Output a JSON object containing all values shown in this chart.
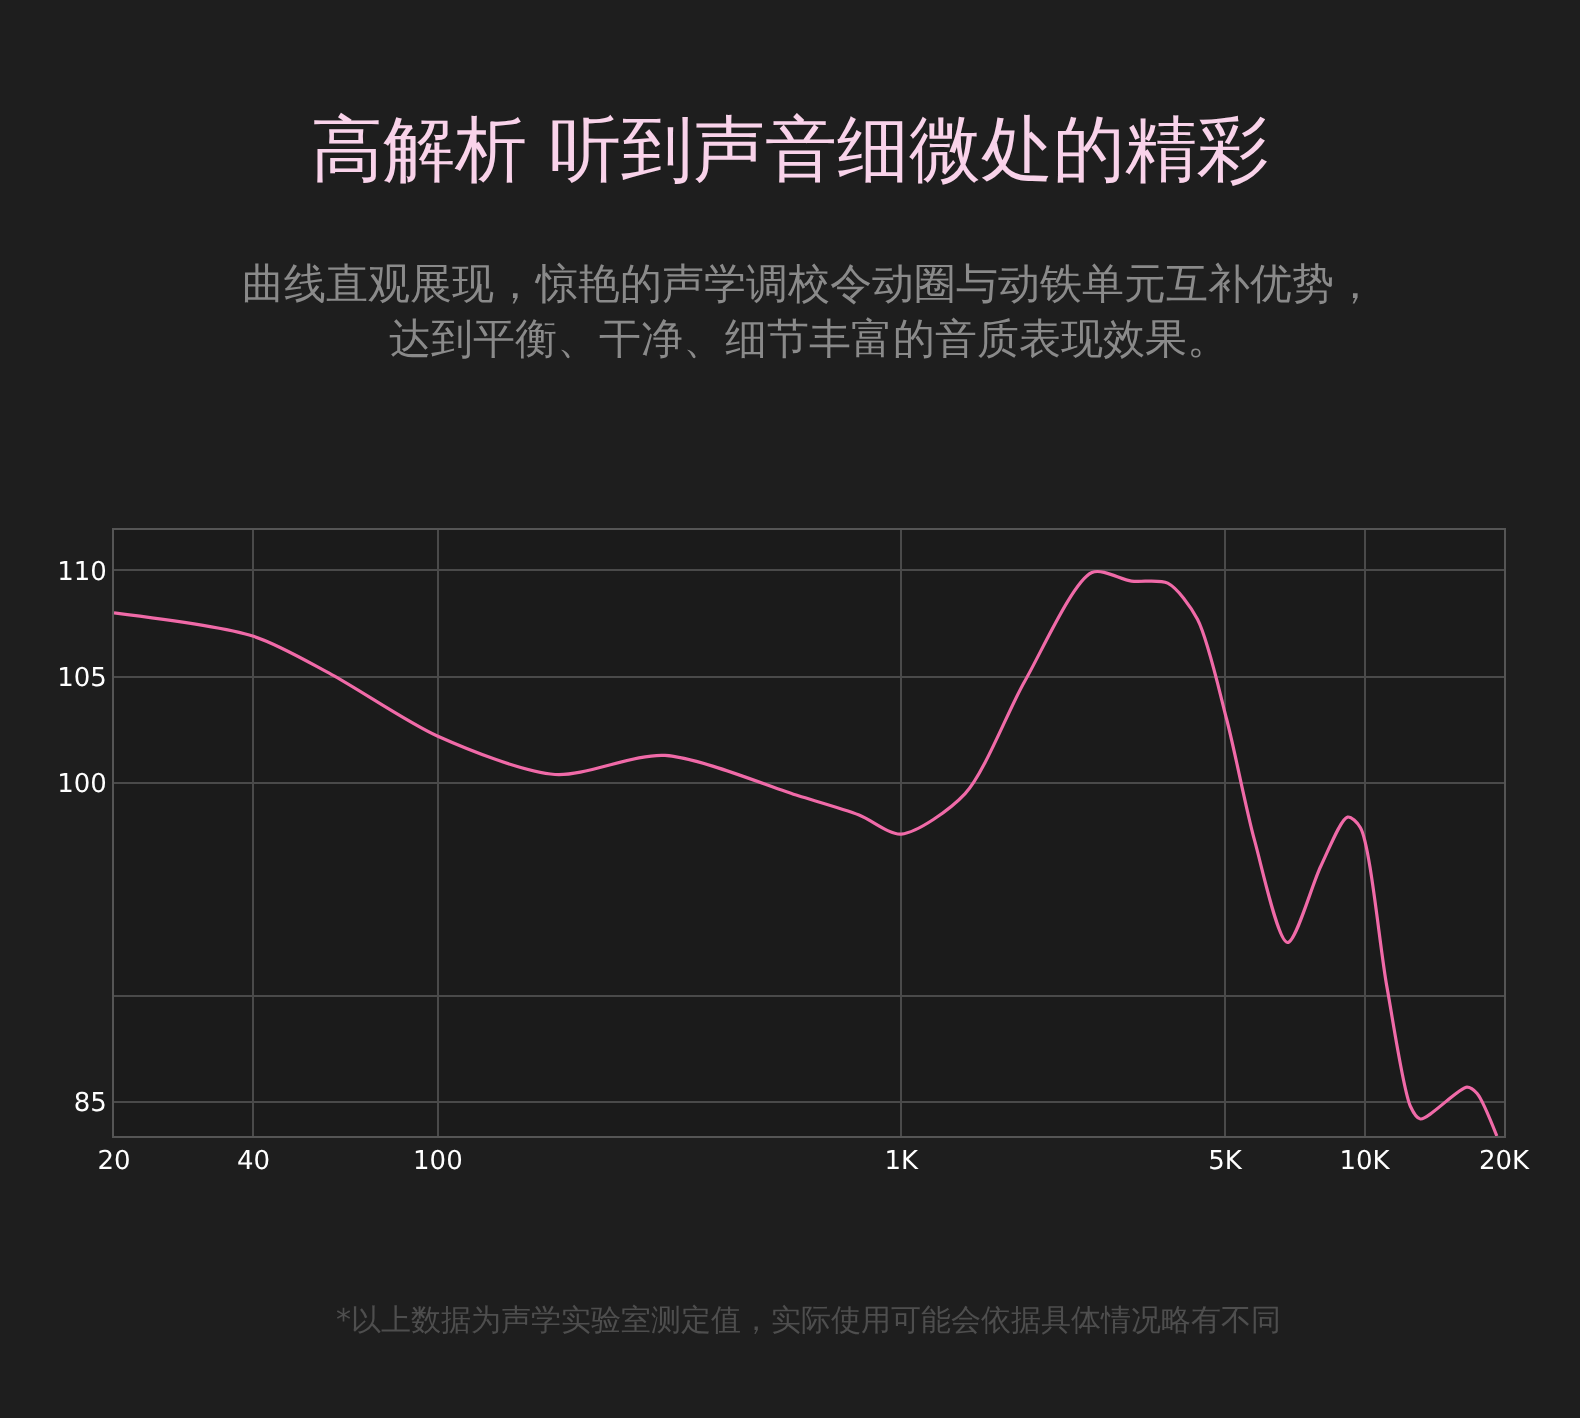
{
  "chart_data": {
    "type": "line",
    "title": "高解析 听到声音细微处的精彩",
    "subtitle": "曲线直观展现，惊艳的声学调校令动圈与动铁单元互补优势，达到平衡、干净、细节丰富的音质表现效果。",
    "annotations": [
      "*以上数据为声学实验室测定值，实际使用可能会依据具体情况略有不同"
    ],
    "log": "x",
    "x": [
      20,
      40,
      59,
      100,
      179,
      309,
      600,
      811,
      1000,
      1374,
      1849,
      2580,
      3140,
      3760,
      4360,
      5040,
      5790,
      6820,
      8050,
      9190,
      9800,
      11180,
      12560,
      13200,
      16640,
      17500,
      19300
    ],
    "series": [
      {
        "color": "#f06aa8",
        "values": [
          108.0,
          106.9,
          105.1,
          102.2,
          100.4,
          101.3,
          99.4,
          98.5,
          97.6,
          99.5,
          104.8,
          109.9,
          109.5,
          109.4,
          107.7,
          103.0,
          97.3,
          92.5,
          96.1,
          98.4,
          97.9,
          90.4,
          84.8,
          84.2,
          85.7,
          85.4,
          83.4
        ]
      }
    ],
    "xlim": [
      20,
      20000
    ],
    "xticks": [
      20,
      40,
      100,
      {
        "value": 1000,
        "label": "1K"
      },
      {
        "value": 5000,
        "label": "5K"
      },
      {
        "value": 10000,
        "label": "10K"
      },
      {
        "value": 20000,
        "label": "20K"
      }
    ],
    "ylim": [
      83.4,
      111.9
    ],
    "yticks": [
      85,
      {
        "value": 90,
        "label": null
      },
      100,
      105,
      110
    ],
    "grid": true,
    "marker": "none",
    "line_style": "solid"
  }
}
